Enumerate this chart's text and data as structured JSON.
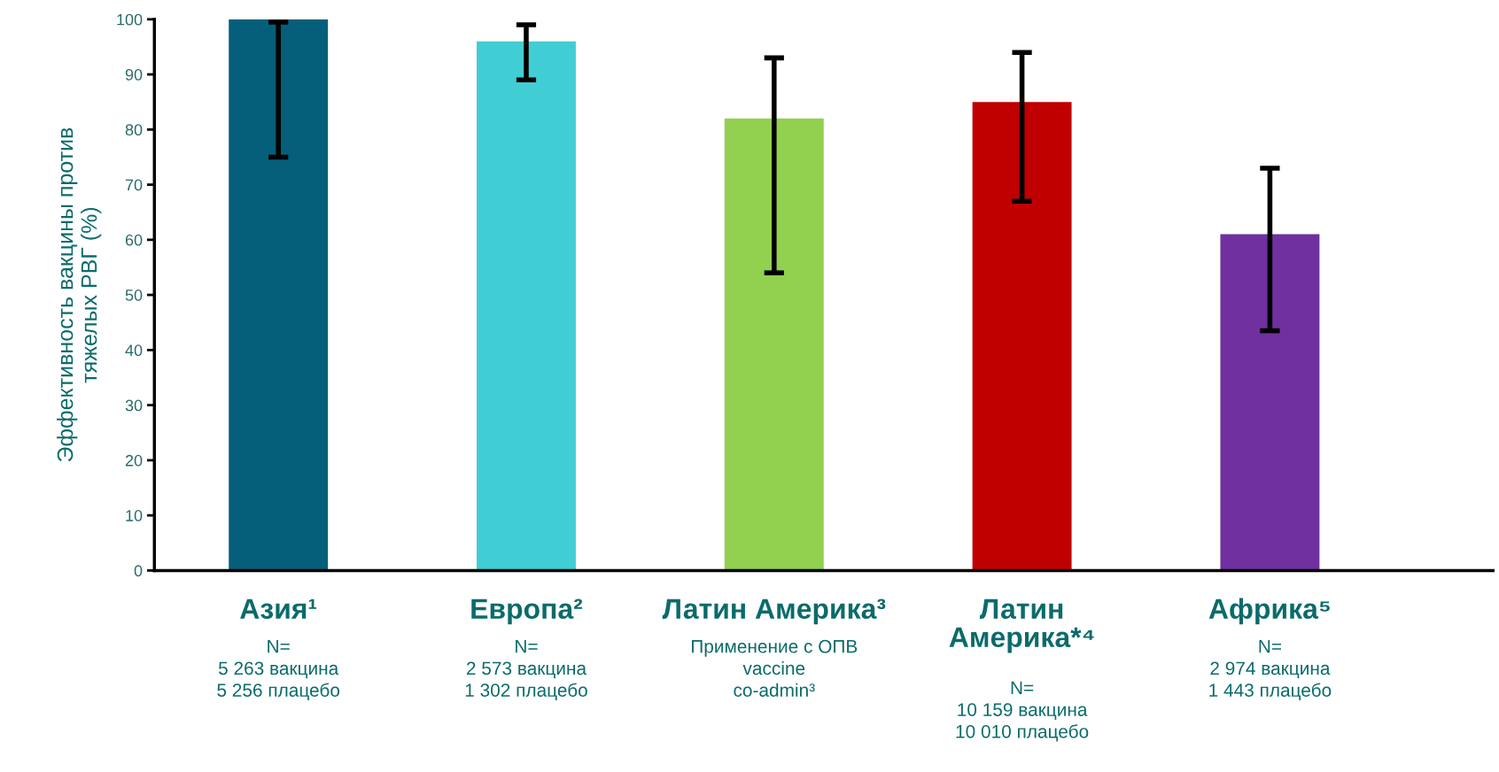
{
  "chart_data": {
    "type": "bar",
    "ylabel": "Эффективность вакцины против\nтяжелых РВГ (%)",
    "categories": [
      "Азия¹",
      "Европа²",
      "Латин Америка³",
      "Латин\nАмерика*⁴",
      "Африка⁵"
    ],
    "values": [
      100,
      96,
      82,
      85,
      61
    ],
    "colors": [
      "#055f7a",
      "#40ced4",
      "#92d050",
      "#c00000",
      "#7030a0"
    ],
    "errors": [
      [
        75,
        99.5
      ],
      [
        89,
        99
      ],
      [
        54,
        93
      ],
      [
        67,
        94
      ],
      [
        43.5,
        73
      ]
    ],
    "ylim": [
      0,
      100
    ],
    "yticks": [
      0,
      10,
      20,
      30,
      40,
      50,
      60,
      70,
      80,
      90,
      100
    ],
    "grid": false,
    "legend": false,
    "annotations": [
      "N=\n5 263 вакцина\n5 256 плацебо",
      "N=\n2 573 вакцина\n1 302 плацебо",
      "Применение с ОПВ\nvaccine\nco-admin³",
      "N=\n10 159 вакцина\n10 010 плацебо",
      "N=\n2 974 вакцина\n1 443 плацебо"
    ]
  }
}
